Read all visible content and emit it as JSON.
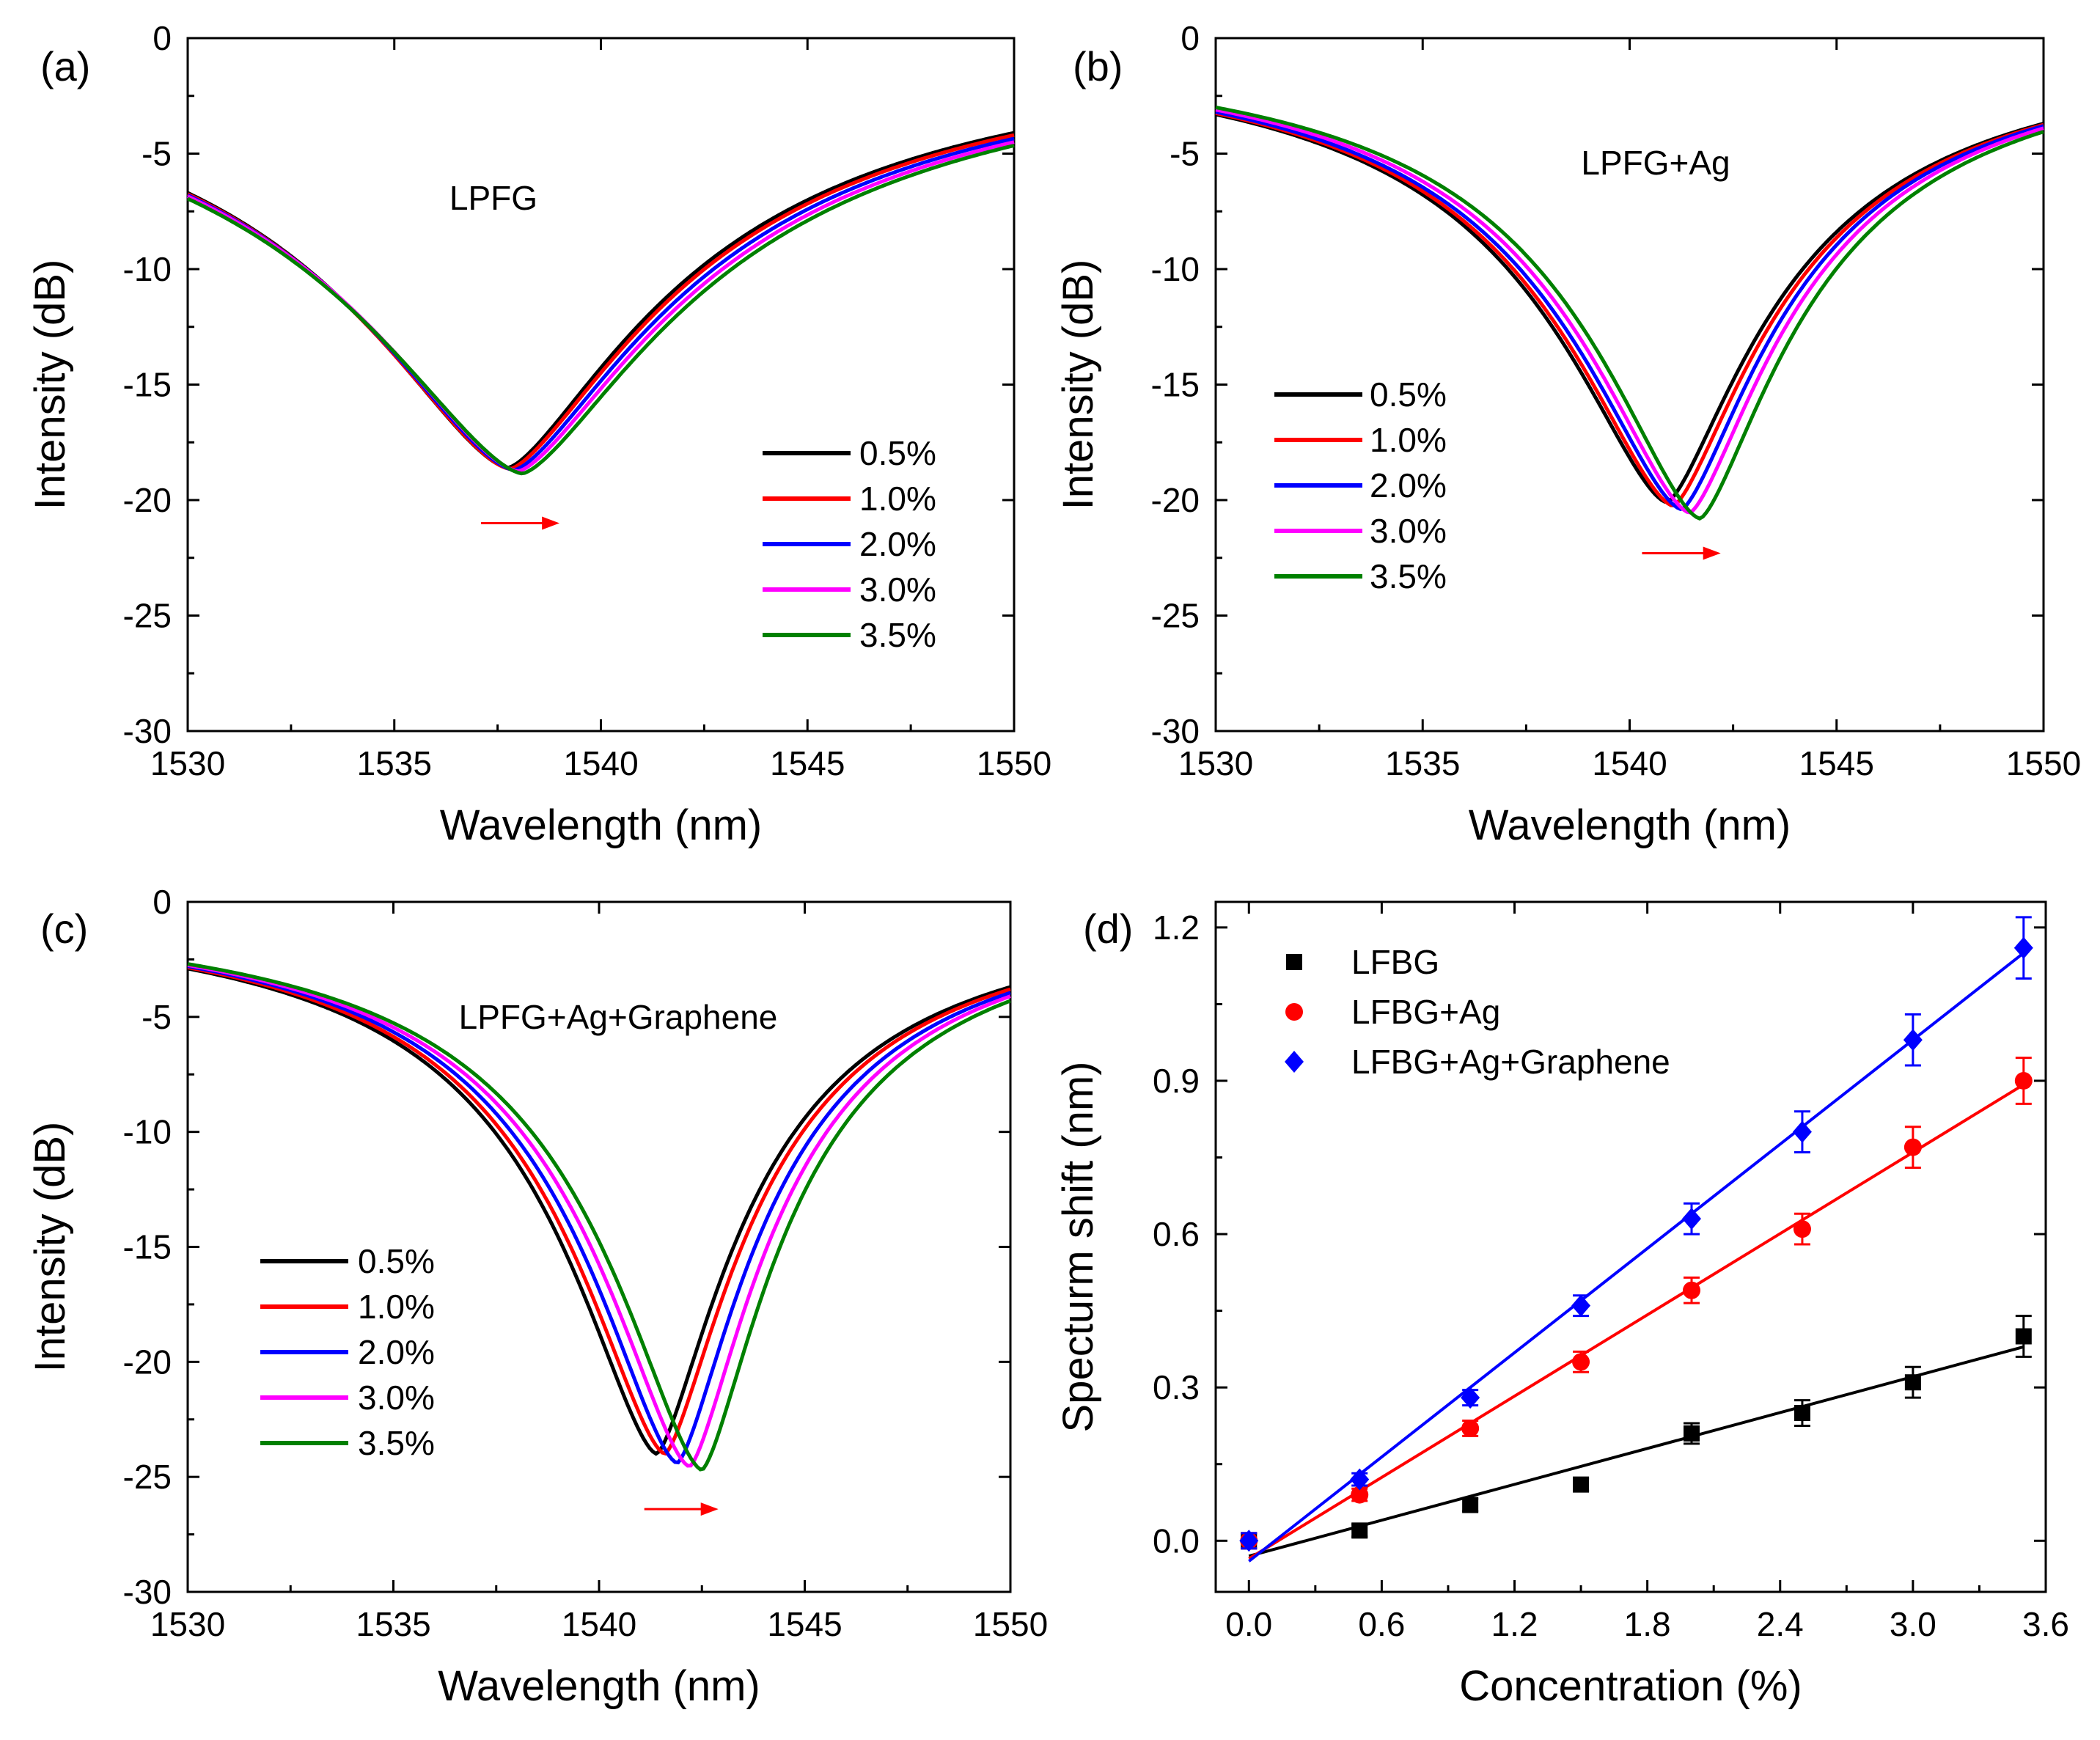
{
  "colors": {
    "series": [
      "#000000",
      "#ff0000",
      "#0000ff",
      "#ff00ff",
      "#008000"
    ],
    "arrow": "#ff0000",
    "axis": "#000000"
  },
  "chart_data": [
    {
      "panel": "(a)",
      "type": "line",
      "annotation": "LPFG",
      "xlabel": "Wavelength (nm)",
      "ylabel": "Intensity (dB)",
      "xlim": [
        1530,
        1550
      ],
      "ylim": [
        -30,
        0
      ],
      "xticks": [
        "1530",
        "1535",
        "1540",
        "1545",
        "1550"
      ],
      "yticks": [
        "0",
        "-5",
        "-10",
        "-15",
        "-20",
        "-25",
        "-30"
      ],
      "legend_position": "bottom-right",
      "legend_labels": [
        "0.5%",
        "1.0%",
        "2.0%",
        "3.0%",
        "3.5%"
      ],
      "arrow": {
        "x_start": 1537.1,
        "x_end": 1539.0,
        "y": -21.0
      },
      "series": [
        {
          "name": "0.5%",
          "dip_wavelength": 1537.75,
          "dip_depth": -18.6,
          "left_edge": -6.7,
          "right_edge": -4.1
        },
        {
          "name": "1.0%",
          "dip_wavelength": 1537.8,
          "dip_depth": -18.65,
          "left_edge": -6.75,
          "right_edge": -4.2
        },
        {
          "name": "2.0%",
          "dip_wavelength": 1537.9,
          "dip_depth": -18.7,
          "left_edge": -6.8,
          "right_edge": -4.35
        },
        {
          "name": "3.0%",
          "dip_wavelength": 1538.0,
          "dip_depth": -18.75,
          "left_edge": -6.85,
          "right_edge": -4.5
        },
        {
          "name": "3.5%",
          "dip_wavelength": 1538.1,
          "dip_depth": -18.85,
          "left_edge": -6.95,
          "right_edge": -4.65
        }
      ]
    },
    {
      "panel": "(b)",
      "type": "line",
      "annotation": "LPFG+Ag",
      "xlabel": "Wavelength (nm)",
      "ylabel": "Intensity (dB)",
      "xlim": [
        1530,
        1550
      ],
      "ylim": [
        -30,
        0
      ],
      "xticks": [
        "1530",
        "1535",
        "1540",
        "1545",
        "1550"
      ],
      "yticks": [
        "0",
        "-5",
        "-10",
        "-15",
        "-20",
        "-25",
        "-30"
      ],
      "legend_position": "center-left",
      "legend_labels": [
        "0.5%",
        "1.0%",
        "2.0%",
        "3.0%",
        "3.5%"
      ],
      "arrow": {
        "x_start": 1540.3,
        "x_end": 1542.2,
        "y": -22.3
      },
      "series": [
        {
          "name": "0.5%",
          "dip_wavelength": 1540.9,
          "dip_depth": -20.1,
          "left_edge": -3.3,
          "right_edge": -3.7
        },
        {
          "name": "1.0%",
          "dip_wavelength": 1541.05,
          "dip_depth": -20.25,
          "left_edge": -3.25,
          "right_edge": -3.75
        },
        {
          "name": "2.0%",
          "dip_wavelength": 1541.25,
          "dip_depth": -20.4,
          "left_edge": -3.2,
          "right_edge": -3.8
        },
        {
          "name": "3.0%",
          "dip_wavelength": 1541.45,
          "dip_depth": -20.55,
          "left_edge": -3.1,
          "right_edge": -3.9
        },
        {
          "name": "3.5%",
          "dip_wavelength": 1541.7,
          "dip_depth": -20.8,
          "left_edge": -3.0,
          "right_edge": -4.05
        }
      ]
    },
    {
      "panel": "(c)",
      "type": "line",
      "annotation": "LPFG+Ag+Graphene",
      "xlabel": "Wavelength (nm)",
      "ylabel": "Intensity (dB)",
      "xlim": [
        1530,
        1550
      ],
      "ylim": [
        -30,
        0
      ],
      "xticks": [
        "1530",
        "1535",
        "1540",
        "1545",
        "1550"
      ],
      "yticks": [
        "0",
        "-5",
        "-10",
        "-15",
        "-20",
        "-25",
        "-30"
      ],
      "legend_position": "center-left",
      "legend_labels": [
        "0.5%",
        "1.0%",
        "2.0%",
        "3.0%",
        "3.5%"
      ],
      "arrow": {
        "x_start": 1541.1,
        "x_end": 1542.9,
        "y": -26.4
      },
      "series": [
        {
          "name": "0.5%",
          "dip_wavelength": 1541.4,
          "dip_depth": -24.0,
          "left_edge": -2.9,
          "right_edge": -3.7
        },
        {
          "name": "1.0%",
          "dip_wavelength": 1541.6,
          "dip_depth": -24.0,
          "left_edge": -2.85,
          "right_edge": -3.8
        },
        {
          "name": "2.0%",
          "dip_wavelength": 1541.9,
          "dip_depth": -24.4,
          "left_edge": -2.8,
          "right_edge": -3.95
        },
        {
          "name": "3.0%",
          "dip_wavelength": 1542.2,
          "dip_depth": -24.55,
          "left_edge": -2.75,
          "right_edge": -4.1
        },
        {
          "name": "3.5%",
          "dip_wavelength": 1542.5,
          "dip_depth": -24.7,
          "left_edge": -2.7,
          "right_edge": -4.3
        }
      ]
    },
    {
      "panel": "(d)",
      "type": "scatter",
      "xlabel": "Concentration (%)",
      "ylabel": "Specturm shift (nm)",
      "xlim": [
        -0.15,
        3.6
      ],
      "ylim": [
        -0.1,
        1.25
      ],
      "xticks": [
        "0.0",
        "0.6",
        "1.2",
        "1.8",
        "2.4",
        "3.0",
        "3.6"
      ],
      "yticks": [
        "0.0",
        "0.3",
        "0.6",
        "0.9",
        "1.2"
      ],
      "legend_position": "top-left",
      "series": [
        {
          "name": "LFBG",
          "marker": "square",
          "x": [
            0,
            0.5,
            1.0,
            1.5,
            2.0,
            2.5,
            3.0,
            3.5
          ],
          "y": [
            0.0,
            0.02,
            0.07,
            0.11,
            0.21,
            0.25,
            0.31,
            0.4
          ],
          "err": [
            0.015,
            0.012,
            0.012,
            0.012,
            0.02,
            0.025,
            0.03,
            0.04
          ],
          "fit": {
            "slope": 0.117,
            "intercept": -0.03
          }
        },
        {
          "name": "LFBG+Ag",
          "marker": "circle",
          "x": [
            0,
            0.5,
            1.0,
            1.5,
            2.0,
            2.5,
            3.0,
            3.5
          ],
          "y": [
            0.0,
            0.09,
            0.22,
            0.35,
            0.49,
            0.61,
            0.77,
            0.9
          ],
          "err": [
            0.015,
            0.012,
            0.015,
            0.02,
            0.025,
            0.03,
            0.04,
            0.045
          ],
          "fit": {
            "slope": 0.265,
            "intercept": -0.035
          }
        },
        {
          "name": "LFBG+Ag+Graphene",
          "marker": "diamond",
          "x": [
            0,
            0.5,
            1.0,
            1.5,
            2.0,
            2.5,
            3.0,
            3.5
          ],
          "y": [
            0.0,
            0.12,
            0.28,
            0.46,
            0.63,
            0.8,
            0.98,
            1.16
          ],
          "err": [
            0.015,
            0.012,
            0.015,
            0.02,
            0.03,
            0.04,
            0.05,
            0.06
          ],
          "fit": {
            "slope": 0.34,
            "intercept": -0.04
          }
        }
      ]
    }
  ]
}
